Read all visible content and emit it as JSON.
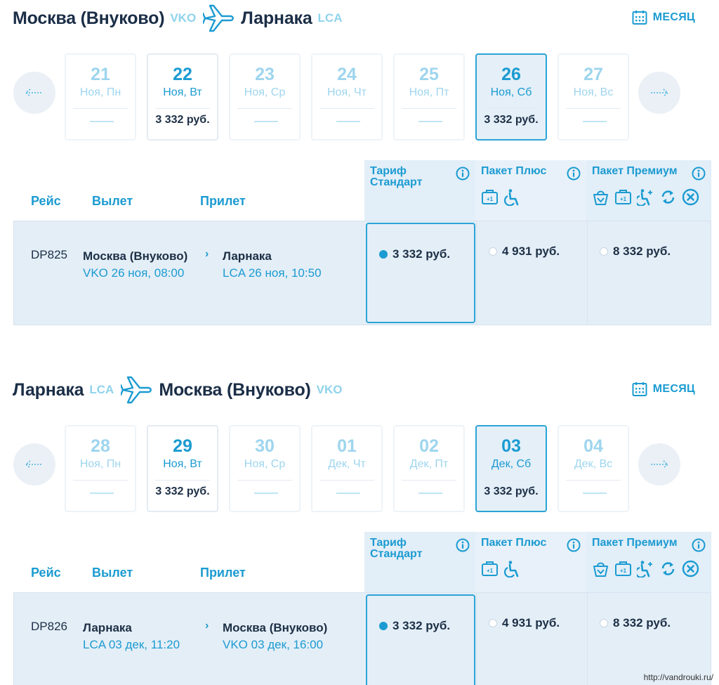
{
  "outbound": {
    "route": {
      "from_city": "Москва (Внуково)",
      "from_code": "VKO",
      "to_city": "Ларнака",
      "to_code": "LCA"
    },
    "month_label": "МЕСЯЦ",
    "days": [
      {
        "num": "21",
        "label": "Ноя, Пн",
        "price": "",
        "state": "na"
      },
      {
        "num": "22",
        "label": "Ноя, Вт",
        "price": "3 332 руб.",
        "state": "avail"
      },
      {
        "num": "23",
        "label": "Ноя, Ср",
        "price": "",
        "state": "na"
      },
      {
        "num": "24",
        "label": "Ноя, Чт",
        "price": "",
        "state": "na"
      },
      {
        "num": "25",
        "label": "Ноя, Пт",
        "price": "",
        "state": "na"
      },
      {
        "num": "26",
        "label": "Ноя, Сб",
        "price": "3 332 руб.",
        "state": "selected"
      },
      {
        "num": "27",
        "label": "Ноя, Вс",
        "price": "",
        "state": "na"
      }
    ],
    "columns": {
      "flight": "Рейс",
      "departure": "Вылет",
      "arrival": "Прилет"
    },
    "fares": {
      "standard": "Тариф Стандарт",
      "plus": "Пакет Плюс",
      "premium": "Пакет Премиум"
    },
    "flight": {
      "number": "DP825",
      "dep_city": "Москва (Внуково)",
      "dep_time": "VKO 26 ноя, 08:00",
      "arr_city": "Ларнака",
      "arr_time": "LCA 26 ноя, 10:50",
      "price_standard": "3 332 руб.",
      "price_plus": "4 931 руб.",
      "price_premium": "8 332 руб."
    }
  },
  "return": {
    "route": {
      "from_city": "Ларнака",
      "from_code": "LCA",
      "to_city": "Москва (Внуково)",
      "to_code": "VKO"
    },
    "month_label": "МЕСЯЦ",
    "days": [
      {
        "num": "28",
        "label": "Ноя, Пн",
        "price": "",
        "state": "na"
      },
      {
        "num": "29",
        "label": "Ноя, Вт",
        "price": "3 332 руб.",
        "state": "avail"
      },
      {
        "num": "30",
        "label": "Ноя, Ср",
        "price": "",
        "state": "na"
      },
      {
        "num": "01",
        "label": "Дек, Чт",
        "price": "",
        "state": "na"
      },
      {
        "num": "02",
        "label": "Дек, Пт",
        "price": "",
        "state": "na"
      },
      {
        "num": "03",
        "label": "Дек, Сб",
        "price": "3 332 руб.",
        "state": "selected"
      },
      {
        "num": "04",
        "label": "Дек, Вс",
        "price": "",
        "state": "na"
      }
    ],
    "columns": {
      "flight": "Рейс",
      "departure": "Вылет",
      "arrival": "Прилет"
    },
    "fares": {
      "standard": "Тариф Стандарт",
      "plus": "Пакет Плюс",
      "premium": "Пакет Премиум"
    },
    "flight": {
      "number": "DP826",
      "dep_city": "Ларнака",
      "dep_time": "LCA 03 дек, 11:20",
      "arr_city": "Москва (Внуково)",
      "arr_time": "VKO 03 дек, 16:00",
      "price_standard": "3 332 руб.",
      "price_plus": "4 931 руб.",
      "price_premium": "8 332 руб."
    }
  },
  "icons": {
    "route": "airplane-icon",
    "month": "calendar-icon",
    "prev": "arrow-left-icon",
    "next": "arrow-right-icon",
    "info": "info-icon",
    "plus_package": [
      "baggage-plus-one-icon",
      "wheelchair-icon"
    ],
    "premium_package": [
      "bag-icon",
      "baggage-plus-one-icon",
      "priority-passenger-icon",
      "exchange-icon",
      "cancel-icon"
    ]
  },
  "colors": {
    "accent": "#1b9bd1",
    "light_accent": "#9ed5ee",
    "text_dark": "#1c2f45",
    "row_bg": "#e4eef7"
  },
  "watermark": "http://vandrouki.ru/"
}
